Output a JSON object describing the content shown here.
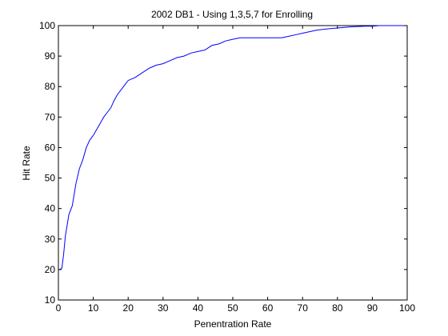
{
  "chart_data": {
    "type": "line",
    "title": "2002 DB1 - Using 1,3,5,7 for Enrolling",
    "xlabel": "Penentration Rate",
    "ylabel": "Hit Rate",
    "xlim": [
      0,
      100
    ],
    "ylim": [
      10,
      100
    ],
    "xticks": [
      0,
      10,
      20,
      30,
      40,
      50,
      60,
      70,
      80,
      90,
      100
    ],
    "yticks": [
      10,
      20,
      30,
      40,
      50,
      60,
      70,
      80,
      90,
      100
    ],
    "grid": false,
    "legend": "none",
    "line_color": "#0000ff",
    "series": [
      {
        "x": [
          0,
          0.5,
          1,
          1.5,
          2,
          3,
          4,
          5,
          6,
          7,
          8,
          9,
          10,
          11,
          12,
          13,
          14,
          15,
          16,
          17,
          18,
          19,
          20,
          22,
          24,
          26,
          28,
          30,
          32,
          34,
          36,
          38,
          40,
          42,
          44,
          46,
          48,
          50,
          52,
          54,
          56,
          58,
          60,
          62,
          64,
          66,
          68,
          70,
          72,
          74,
          76,
          78,
          80,
          82,
          84,
          86,
          88,
          90,
          92,
          100
        ],
        "y": [
          20,
          20,
          20.5,
          25,
          31,
          38,
          41,
          48,
          53,
          56,
          60,
          62.5,
          64,
          66,
          68,
          70,
          71.5,
          73,
          75.5,
          77.5,
          79,
          80.5,
          82,
          83,
          84.5,
          86,
          87,
          87.5,
          88.5,
          89.5,
          90,
          91,
          91.5,
          92,
          93.5,
          94,
          95,
          95.5,
          96,
          96,
          96,
          96,
          96,
          96,
          96,
          96.5,
          97,
          97.5,
          98,
          98.5,
          98.8,
          99,
          99.2,
          99.4,
          99.6,
          99.7,
          99.8,
          99.8,
          100,
          100
        ]
      }
    ]
  }
}
